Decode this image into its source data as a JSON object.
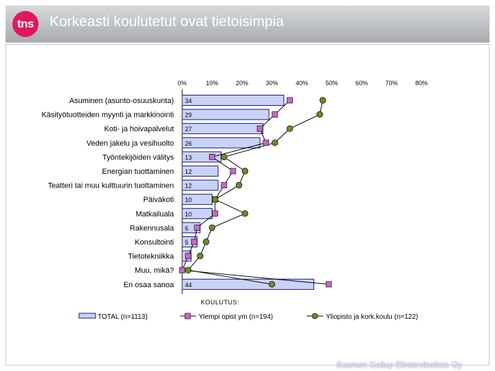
{
  "header": {
    "logo_text": "tns",
    "title": "Korkeasti koulutetut ovat tietoisimpia"
  },
  "footer": {
    "credit": "Suomen Gallup Elintarviketieto Oy"
  },
  "colors": {
    "bar_fill": "#c9d3f7",
    "bar_border": "#1a1a6e",
    "marker_square": "#cc66cc",
    "marker_circle": "#6b8e23",
    "header_bg": "#b8bbbf",
    "logo": "#e2175f"
  },
  "chart_data": {
    "type": "bar",
    "orientation": "horizontal",
    "title": "",
    "xlabel": "",
    "xlim": [
      0,
      80
    ],
    "x_ticks": [
      "0%",
      "10%",
      "20%",
      "30%",
      "40%",
      "50%",
      "60%",
      "70%",
      "80%"
    ],
    "legend_title": "KOULUTUS:",
    "categories": [
      "Asuminen (asunto-osuuskunta)",
      "Käsityötuotteiden myynti ja markkinointi",
      "Koti- ja hoivapalvelut",
      "Veden jakelu ja vesihuolto",
      "Työntekijöiden välitys",
      "Energian tuottaminen",
      "Teatteri tai muu kulttuurin tuottaminen",
      "Päiväkoti",
      "Matkailuala",
      "Rakennusala",
      "Konsultointi",
      "Tietotekniikka",
      "Muu, mikä?",
      "En osaa sanoa"
    ],
    "series": [
      {
        "name": "TOTAL (n=1113)",
        "kind": "bar",
        "values": [
          34,
          29,
          27,
          26,
          13,
          12,
          12,
          10,
          10,
          6,
          5,
          3,
          0,
          44
        ],
        "labels": [
          "34",
          "29",
          "27",
          "26",
          "13",
          "12",
          "12",
          "10",
          "10",
          "6",
          "5",
          "3",
          "",
          "44"
        ]
      },
      {
        "name": "Ylempi opist ym (n=194)",
        "kind": "line-square",
        "values": [
          36,
          31,
          26,
          28,
          10,
          17,
          14,
          11,
          11,
          5,
          4,
          2,
          0,
          49
        ]
      },
      {
        "name": "Yliopisto ja kork.koulu (n=122)",
        "kind": "line-circle",
        "values": [
          47,
          46,
          36,
          31,
          14,
          21,
          19,
          11,
          21,
          10,
          8,
          6,
          2,
          30
        ]
      }
    ]
  }
}
